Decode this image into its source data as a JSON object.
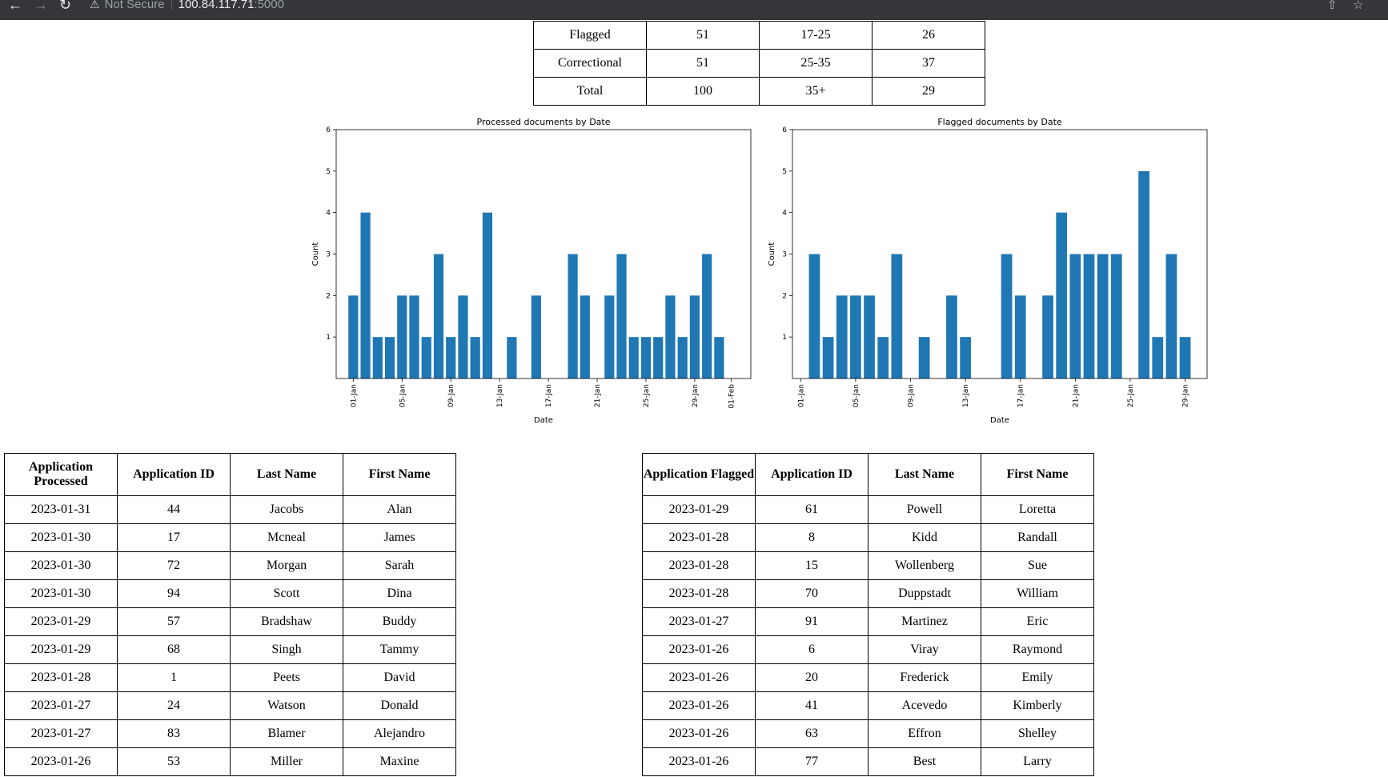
{
  "browser": {
    "security_label": "Not Secure",
    "host": "100.84.117.71",
    "port": ":5000"
  },
  "summary": {
    "rows": [
      [
        "Flagged",
        "51",
        "17-25",
        "26"
      ],
      [
        "Correctional",
        "51",
        "25-35",
        "37"
      ],
      [
        "Total",
        "100",
        "35+",
        "29"
      ]
    ]
  },
  "chart_data": [
    {
      "type": "bar",
      "title": "Processed documents by Date",
      "xlabel": "Date",
      "ylabel": "Count",
      "ylim": [
        0,
        6
      ],
      "yticks": [
        "1",
        "2",
        "3",
        "4",
        "5",
        "6"
      ],
      "xticks": [
        "01-Jan",
        "05-Jan",
        "09-Jan",
        "13-Jan",
        "17-Jan",
        "21-Jan",
        "25-Jan",
        "29-Jan",
        "01-Feb"
      ],
      "x": [
        "2023-01-01",
        "2023-01-02",
        "2023-01-03",
        "2023-01-04",
        "2023-01-05",
        "2023-01-06",
        "2023-01-07",
        "2023-01-08",
        "2023-01-09",
        "2023-01-10",
        "2023-01-11",
        "2023-01-12",
        "2023-01-14",
        "2023-01-16",
        "2023-01-19",
        "2023-01-20",
        "2023-01-22",
        "2023-01-23",
        "2023-01-24",
        "2023-01-25",
        "2023-01-26",
        "2023-01-27",
        "2023-01-28",
        "2023-01-29",
        "2023-01-30",
        "2023-01-31"
      ],
      "values": [
        2,
        4,
        1,
        1,
        2,
        2,
        1,
        3,
        1,
        2,
        1,
        4,
        1,
        2,
        3,
        2,
        2,
        3,
        1,
        1,
        1,
        2,
        1,
        2,
        3,
        1
      ]
    },
    {
      "type": "bar",
      "title": "Flagged documents by Date",
      "xlabel": "Date",
      "ylabel": "Count",
      "ylim": [
        0,
        6
      ],
      "yticks": [
        "1",
        "2",
        "3",
        "4",
        "5",
        "6"
      ],
      "xticks": [
        "01-Jan",
        "05-Jan",
        "09-Jan",
        "13-Jan",
        "17-Jan",
        "21-Jan",
        "25-Jan",
        "29-Jan"
      ],
      "x": [
        "2023-01-02",
        "2023-01-03",
        "2023-01-04",
        "2023-01-05",
        "2023-01-06",
        "2023-01-07",
        "2023-01-08",
        "2023-01-10",
        "2023-01-12",
        "2023-01-13",
        "2023-01-16",
        "2023-01-17",
        "2023-01-19",
        "2023-01-20",
        "2023-01-21",
        "2023-01-22",
        "2023-01-23",
        "2023-01-24",
        "2023-01-26",
        "2023-01-27",
        "2023-01-28",
        "2023-01-29"
      ],
      "values": [
        3,
        1,
        2,
        2,
        2,
        1,
        3,
        1,
        2,
        1,
        3,
        2,
        2,
        4,
        3,
        3,
        3,
        3,
        5,
        1,
        3,
        1
      ]
    }
  ],
  "processed_table": {
    "headers": [
      "Application Processed",
      "Application ID",
      "Last Name",
      "First Name"
    ],
    "rows": [
      [
        "2023-01-31",
        "44",
        "Jacobs",
        "Alan"
      ],
      [
        "2023-01-30",
        "17",
        "Mcneal",
        "James"
      ],
      [
        "2023-01-30",
        "72",
        "Morgan",
        "Sarah"
      ],
      [
        "2023-01-30",
        "94",
        "Scott",
        "Dina"
      ],
      [
        "2023-01-29",
        "57",
        "Bradshaw",
        "Buddy"
      ],
      [
        "2023-01-29",
        "68",
        "Singh",
        "Tammy"
      ],
      [
        "2023-01-28",
        "1",
        "Peets",
        "David"
      ],
      [
        "2023-01-27",
        "24",
        "Watson",
        "Donald"
      ],
      [
        "2023-01-27",
        "83",
        "Blamer",
        "Alejandro"
      ],
      [
        "2023-01-26",
        "53",
        "Miller",
        "Maxine"
      ]
    ]
  },
  "flagged_table": {
    "headers": [
      "Application Flagged",
      "Application ID",
      "Last Name",
      "First Name"
    ],
    "rows": [
      [
        "2023-01-29",
        "61",
        "Powell",
        "Loretta"
      ],
      [
        "2023-01-28",
        "8",
        "Kidd",
        "Randall"
      ],
      [
        "2023-01-28",
        "15",
        "Wollenberg",
        "Sue"
      ],
      [
        "2023-01-28",
        "70",
        "Duppstadt",
        "William"
      ],
      [
        "2023-01-27",
        "91",
        "Martinez",
        "Eric"
      ],
      [
        "2023-01-26",
        "6",
        "Viray",
        "Raymond"
      ],
      [
        "2023-01-26",
        "20",
        "Frederick",
        "Emily"
      ],
      [
        "2023-01-26",
        "41",
        "Acevedo",
        "Kimberly"
      ],
      [
        "2023-01-26",
        "63",
        "Effron",
        "Shelley"
      ],
      [
        "2023-01-26",
        "77",
        "Best",
        "Larry"
      ]
    ]
  }
}
